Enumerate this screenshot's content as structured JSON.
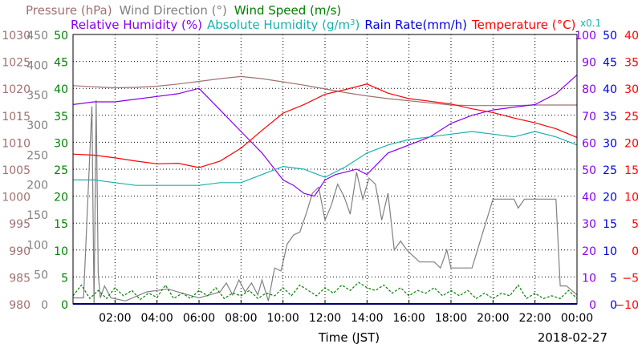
{
  "chart_data": {
    "type": "line",
    "date": "2018-02-27",
    "xlabel": "Time (JST)",
    "x_ticks": [
      "02:00",
      "04:00",
      "06:00",
      "08:00",
      "10:00",
      "12:00",
      "14:00",
      "16:00",
      "18:00",
      "20:00",
      "22:00",
      "00:00"
    ],
    "x_range_hours": [
      0,
      24
    ],
    "legend": {
      "row1": [
        {
          "label": "Pressure (hPa)",
          "color": "#a07070"
        },
        {
          "label": "Wind Direction (°)",
          "color": "#808080"
        },
        {
          "label": "Wind Speed (m/s)",
          "color": "#008000"
        }
      ],
      "row2": [
        {
          "label": "Relative Humidity (%)",
          "color": "#8800ee"
        },
        {
          "label": "Absolute Humidity (g/m",
          "sup": "3",
          "close": ")",
          "color": "#1ab0b0"
        },
        {
          "label": "Rain Rate(mm/h)",
          "color": "#0000e0"
        },
        {
          "label": "Temperature (°C)",
          "color": "#ff0000"
        }
      ],
      "x01": "x0.1"
    },
    "axes": {
      "pressure": {
        "color": "#a07070",
        "min": 980,
        "max": 1030,
        "ticks": [
          "1030",
          "1025",
          "1020",
          "1015",
          "1010",
          "1005",
          "1000",
          "995",
          "990",
          "985",
          "980"
        ]
      },
      "wind_direction": {
        "color": "#808080",
        "min": 0,
        "max": 450,
        "ticks": [
          "450",
          "400",
          "350",
          "300",
          "250",
          "200",
          "150",
          "100",
          "50",
          "0"
        ]
      },
      "wind_speed": {
        "color": "#008000",
        "min": 0,
        "max": 50,
        "ticks": [
          "50",
          "45",
          "40",
          "35",
          "30",
          "25",
          "20",
          "15",
          "10",
          "5",
          "0"
        ]
      },
      "relative_humidity": {
        "color": "#8800ee",
        "min": 0,
        "max": 100,
        "ticks": [
          "100",
          "90",
          "80",
          "70",
          "60",
          "50",
          "40",
          "30",
          "20",
          "10",
          "0"
        ]
      },
      "rain_rate": {
        "color": "#0000e0",
        "min": 0,
        "max": 50,
        "ticks": [
          "50",
          "45",
          "40",
          "35",
          "30",
          "25",
          "20",
          "15",
          "10",
          "5",
          "0"
        ]
      },
      "temperature": {
        "color": "#ff0000",
        "min": -10,
        "max": 40,
        "ticks": [
          "40",
          "35",
          "30",
          "25",
          "20",
          "15",
          "10",
          "5",
          "0",
          "−5",
          "−10"
        ]
      }
    },
    "series": [
      {
        "name": "Pressure (hPa)",
        "axis": "pressure",
        "color": "#a07070",
        "x": [
          0,
          1,
          2,
          3,
          4,
          5,
          6,
          7,
          8,
          9,
          10,
          11,
          12,
          13,
          14,
          15,
          16,
          17,
          18,
          19,
          20,
          21,
          22,
          23,
          24
        ],
        "y": [
          1020.5,
          1020.3,
          1020.1,
          1020.2,
          1020.4,
          1020.8,
          1021.3,
          1021.8,
          1022.2,
          1021.8,
          1021.2,
          1020.6,
          1019.9,
          1019.2,
          1018.6,
          1018.1,
          1017.7,
          1017.3,
          1016.9,
          1016.8,
          1016.8,
          1016.8,
          1016.9,
          1016.9,
          1016.9
        ]
      },
      {
        "name": "Wind Direction (°)",
        "axis": "wind_direction",
        "color": "#808080",
        "x": [
          0,
          0.5,
          0.9,
          1.0,
          1.1,
          1.2,
          1.3,
          1.5,
          1.8,
          2.5,
          3.5,
          4.5,
          5.5,
          6.0,
          6.5,
          7.0,
          7.3,
          7.6,
          7.9,
          8.2,
          8.5,
          8.8,
          9.0,
          9.3,
          9.6,
          9.9,
          10.2,
          10.5,
          10.8,
          11.1,
          11.4,
          11.7,
          12.0,
          12.3,
          12.6,
          12.9,
          13.2,
          13.5,
          13.8,
          14.1,
          14.4,
          14.7,
          15.0,
          15.3,
          15.6,
          15.9,
          16.2,
          16.5,
          16.8,
          17.2,
          17.5,
          17.8,
          18.0,
          18.3,
          18.6,
          19.0,
          20.0,
          21.0,
          21.2,
          21.5,
          22.0,
          23.0,
          23.2,
          23.5,
          24.0
        ],
        "y": [
          10,
          10,
          330,
          0,
          340,
          50,
          10,
          30,
          10,
          5,
          20,
          25,
          15,
          10,
          15,
          20,
          35,
          15,
          40,
          20,
          35,
          15,
          40,
          5,
          60,
          55,
          100,
          115,
          120,
          150,
          185,
          195,
          140,
          165,
          200,
          180,
          150,
          220,
          175,
          210,
          200,
          140,
          185,
          90,
          105,
          90,
          80,
          70,
          70,
          70,
          60,
          90,
          60,
          60,
          60,
          60,
          175,
          175,
          160,
          175,
          175,
          175,
          30,
          30,
          15
        ]
      },
      {
        "name": "Wind Speed (m/s)",
        "axis": "wind_speed",
        "color": "#008000",
        "x": [
          0,
          0.4,
          0.8,
          1.2,
          1.6,
          2.0,
          2.4,
          2.8,
          3.2,
          3.6,
          4.0,
          4.4,
          4.8,
          5.2,
          5.6,
          6.0,
          6.4,
          6.8,
          7.2,
          7.6,
          8.0,
          8.4,
          8.8,
          9.2,
          9.6,
          10.0,
          10.4,
          10.8,
          11.2,
          11.6,
          12.0,
          12.4,
          12.8,
          13.2,
          13.6,
          14.0,
          14.4,
          14.8,
          15.2,
          15.6,
          16.0,
          16.4,
          16.8,
          17.2,
          17.6,
          18.0,
          18.4,
          18.8,
          19.2,
          19.6,
          20.0,
          20.4,
          20.8,
          21.2,
          21.6,
          22.0,
          22.4,
          22.8,
          23.2,
          23.6,
          24.0
        ],
        "y": [
          1.5,
          3.5,
          1.0,
          2.5,
          1.0,
          3.0,
          1.5,
          2.5,
          0.8,
          2.0,
          1.2,
          3.5,
          1.0,
          2.0,
          1.0,
          2.5,
          1.5,
          3.0,
          1.0,
          2.0,
          1.5,
          2.5,
          1.0,
          2.0,
          1.5,
          3.0,
          1.5,
          3.5,
          2.5,
          1.5,
          3.0,
          2.0,
          3.5,
          2.5,
          4.0,
          3.0,
          2.5,
          3.5,
          2.0,
          3.0,
          1.5,
          2.5,
          2.0,
          3.0,
          1.5,
          2.5,
          1.5,
          2.5,
          1.0,
          2.0,
          1.0,
          2.0,
          1.5,
          3.5,
          1.0,
          2.0,
          1.0,
          1.5,
          1.0,
          2.5,
          1.0
        ]
      },
      {
        "name": "Relative Humidity (%)",
        "axis": "relative_humidity",
        "color": "#8800ee",
        "x": [
          0,
          1,
          2,
          3,
          4,
          5,
          6,
          7,
          8,
          9,
          10,
          10.5,
          11,
          11.5,
          12,
          12.5,
          13,
          13.5,
          14,
          15,
          16,
          17,
          18,
          19,
          20,
          21,
          22,
          23,
          24
        ],
        "y": [
          74,
          75,
          75,
          76,
          77,
          78,
          80,
          72,
          64,
          56,
          46,
          44,
          41,
          40,
          46,
          48,
          49,
          50,
          48,
          56,
          59,
          62,
          67,
          70,
          72,
          73,
          74,
          78,
          85
        ]
      },
      {
        "name": "Absolute Humidity (g/m³)",
        "axis": "relative_humidity",
        "color": "#1ab0b0",
        "x": [
          0,
          1,
          2,
          3,
          4,
          5,
          6,
          7,
          8,
          9,
          10,
          11,
          12,
          13,
          14,
          15,
          16,
          17,
          18,
          19,
          20,
          21,
          22,
          23,
          24
        ],
        "y": [
          46,
          46,
          45,
          44,
          44,
          44,
          44,
          45,
          45,
          48,
          51,
          50,
          47,
          51,
          56,
          59,
          61,
          62,
          63,
          64,
          63,
          62,
          64,
          62,
          59
        ]
      },
      {
        "name": "Rain Rate(mm/h)",
        "axis": "rain_rate",
        "color": "#0000e0",
        "x": [
          0,
          24
        ],
        "y": [
          0,
          0
        ]
      },
      {
        "name": "Temperature (°C)",
        "axis": "temperature",
        "color": "#ff0000",
        "x": [
          0,
          1,
          2,
          3,
          4,
          5,
          6,
          7,
          8,
          9,
          10,
          11,
          12,
          13,
          14,
          15,
          16,
          17,
          18,
          19,
          20,
          21,
          22,
          23,
          24
        ],
        "y": [
          17.8,
          17.6,
          17.1,
          16.5,
          16.0,
          16.1,
          15.3,
          16.5,
          18.9,
          22.2,
          25.4,
          27.0,
          28.9,
          29.8,
          30.8,
          29.1,
          28.1,
          27.6,
          27.1,
          26.2,
          25.5,
          24.5,
          23.6,
          22.5,
          20.9
        ]
      }
    ]
  }
}
